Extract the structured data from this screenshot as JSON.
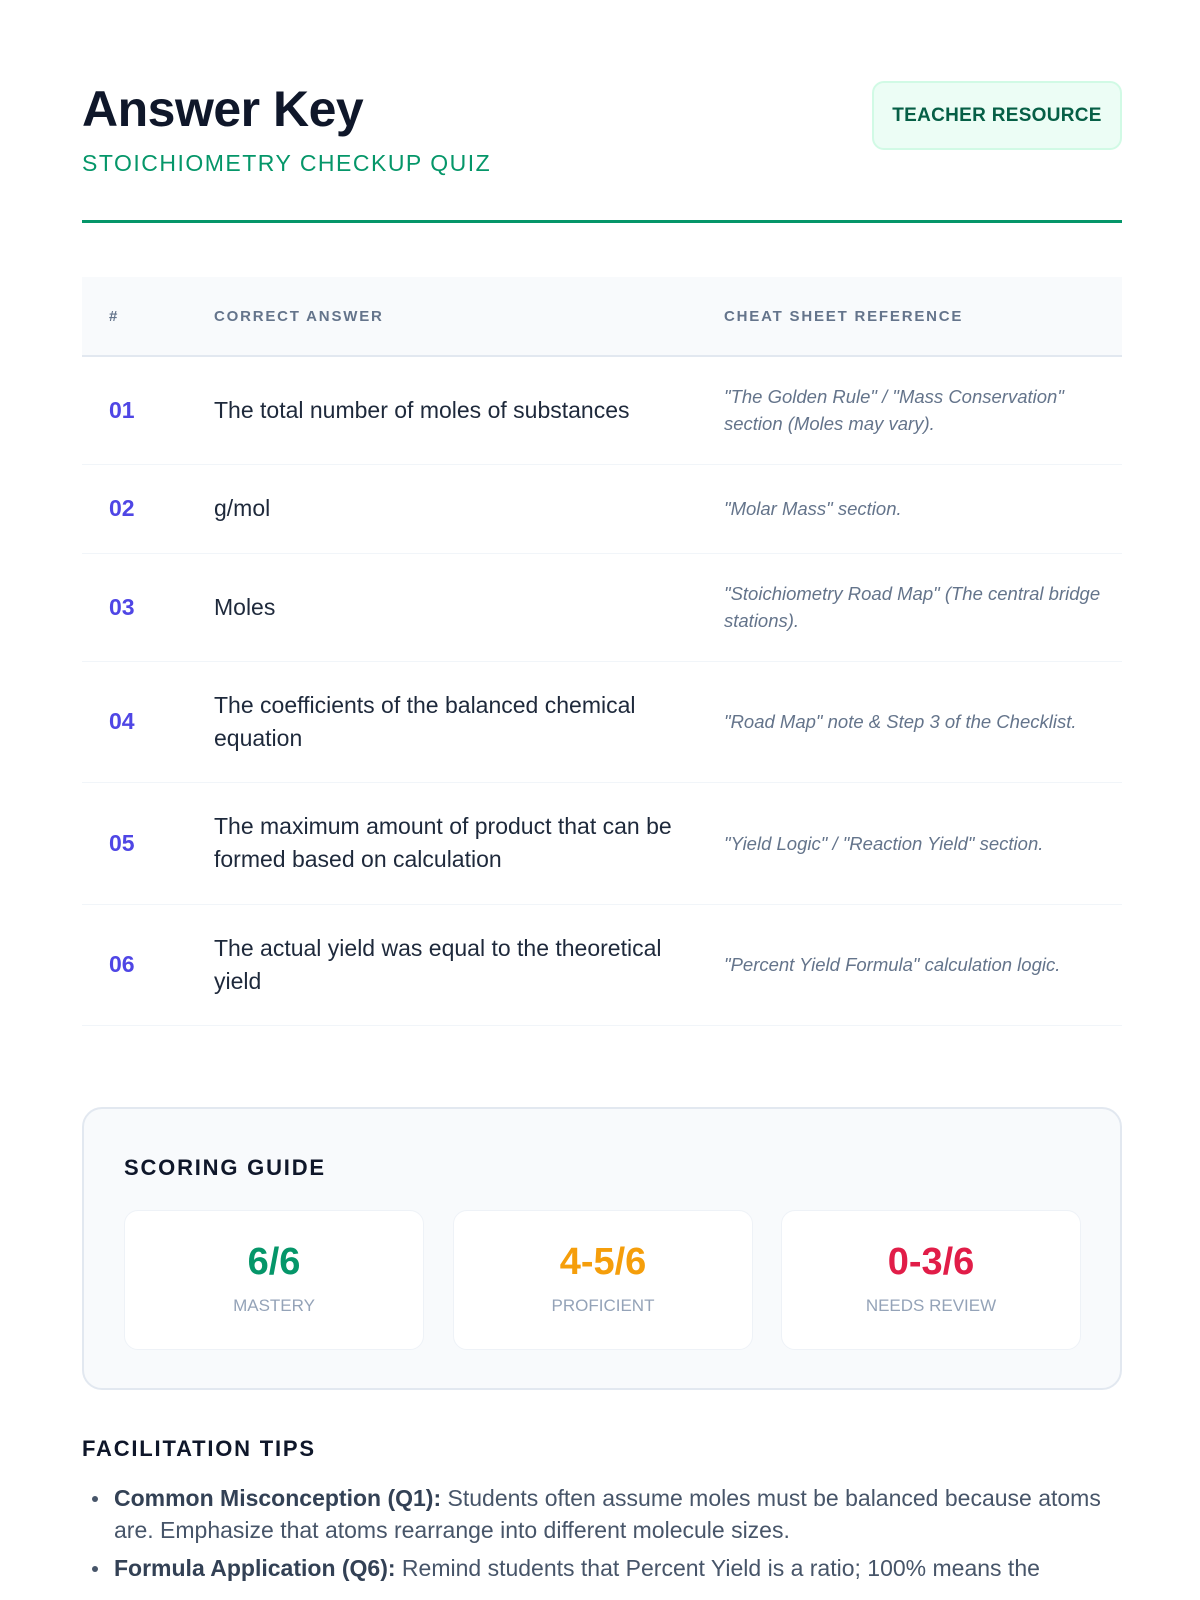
{
  "header": {
    "title": "Answer Key",
    "subtitle": "STOICHIOMETRY CHECKUP QUIZ",
    "badge": "TEACHER RESOURCE"
  },
  "table": {
    "columns": [
      "#",
      "CORRECT ANSWER",
      "CHEAT SHEET REFERENCE"
    ],
    "rows": [
      {
        "num": "01",
        "answer": "The total number of moles of substances",
        "reference": "\"The Golden Rule\" / \"Mass Conservation\" section (Moles may vary)."
      },
      {
        "num": "02",
        "answer": "g/mol",
        "reference": "\"Molar Mass\" section."
      },
      {
        "num": "03",
        "answer": "Moles",
        "reference": "\"Stoichiometry Road Map\" (The central bridge stations)."
      },
      {
        "num": "04",
        "answer": "The coefficients of the balanced chemical equation",
        "reference": "\"Road Map\" note & Step 3 of the Checklist."
      },
      {
        "num": "05",
        "answer": "The maximum amount of product that can be formed based on calculation",
        "reference": "\"Yield Logic\" / \"Reaction Yield\" section."
      },
      {
        "num": "06",
        "answer": "The actual yield was equal to the theoretical yield",
        "reference": "\"Percent Yield Formula\" calculation logic."
      }
    ]
  },
  "scoring": {
    "title": "SCORING GUIDE",
    "levels": [
      {
        "score": "6/6",
        "label": "MASTERY",
        "color": "#059669"
      },
      {
        "score": "4-5/6",
        "label": "PROFICIENT",
        "color": "#f59e0b"
      },
      {
        "score": "0-3/6",
        "label": "NEEDS REVIEW",
        "color": "#e11d48"
      }
    ]
  },
  "tips": {
    "title": "FACILITATION TIPS",
    "items": [
      {
        "label": "Common Misconception (Q1):",
        "text": " Students often assume moles must be balanced because atoms are. Emphasize that atoms rearrange into different molecule sizes."
      },
      {
        "label": "Formula Application (Q6):",
        "text": " Remind students that Percent Yield is a ratio; 100% means the"
      }
    ]
  }
}
